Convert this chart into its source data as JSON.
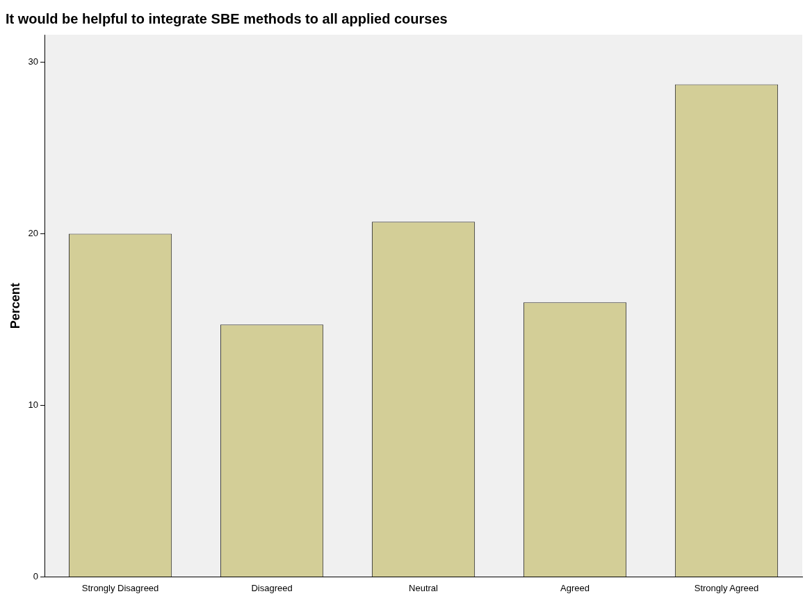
{
  "chart_data": {
    "type": "bar",
    "title": "It would be helpful to integrate SBE methods to all applied courses",
    "ylabel": "Percent",
    "categories": [
      "Strongly Disagreed",
      "Disagreed",
      "Neutral",
      "Agreed",
      "Strongly Agreed"
    ],
    "values": [
      20.0,
      14.7,
      20.7,
      16.0,
      28.7
    ],
    "color": "#d3ce97",
    "ylim": [
      0,
      31.6
    ],
    "yticks": [
      0,
      10,
      20,
      30
    ],
    "grid": false,
    "legend": false
  }
}
